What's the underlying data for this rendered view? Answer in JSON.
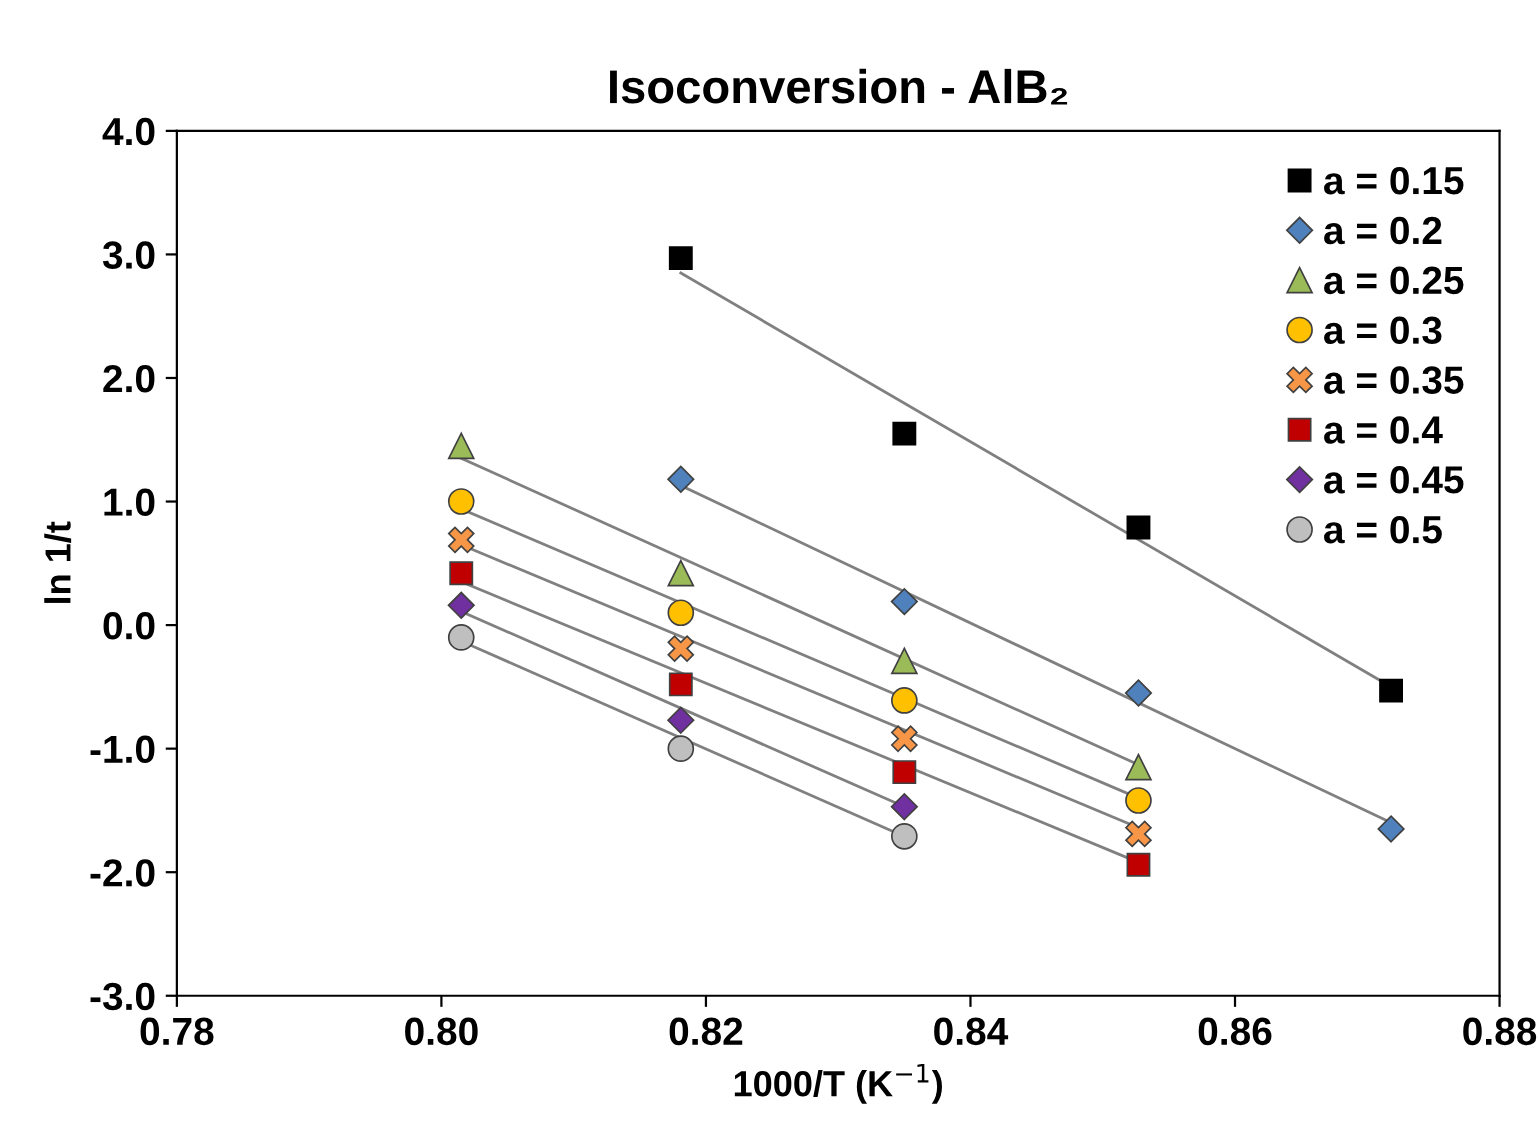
{
  "chart_data": {
    "type": "scatter",
    "title": "Isoconversion - AlB₂",
    "xlabel": "1000/T (K$^{−1}$)",
    "ylabel": "ln 1/t",
    "xlim": [
      0.78,
      0.88
    ],
    "ylim": [
      -3.0,
      4.0
    ],
    "xticks": [
      0.78,
      {
        "value": 0.8,
        "label": "0.80"
      },
      0.82,
      0.84,
      0.86,
      0.88
    ],
    "yticks": [
      {
        "value": -3,
        "label": "-3.0"
      },
      {
        "value": -2,
        "label": "-2.0"
      },
      {
        "value": -1,
        "label": "-1.0"
      },
      {
        "value": 0,
        "label": "0.0"
      },
      {
        "value": 1,
        "label": "1.0"
      },
      {
        "value": 2,
        "label": "2.0"
      },
      {
        "value": 3,
        "label": "3.0"
      },
      {
        "value": 4,
        "label": "4.0"
      }
    ],
    "grid": false,
    "legend": "top right",
    "series": [
      {
        "name": "a = 0.15",
        "color": "#000000",
        "marker": "square",
        "x": [
          0.8181,
          0.835,
          0.8527,
          0.8718
        ],
        "values": [
          2.97,
          1.55,
          0.79,
          -0.53
        ]
      },
      {
        "name": "a = 0.2",
        "color": "#4f81bd",
        "marker": "diamond",
        "x": [
          0.8181,
          0.835,
          0.8527,
          0.8718
        ],
        "values": [
          1.18,
          0.19,
          -0.55,
          -1.65
        ]
      },
      {
        "name": "a = 0.25",
        "color": "#9bbb59",
        "marker": "triangle",
        "x": [
          0.8015,
          0.8181,
          0.835,
          0.8527
        ],
        "values": [
          1.45,
          0.42,
          -0.29,
          -1.15
        ]
      },
      {
        "name": "a = 0.3",
        "color": "#ffc000",
        "marker": "circle",
        "x": [
          0.8015,
          0.8181,
          0.835,
          0.8527
        ],
        "values": [
          1.0,
          0.1,
          -0.61,
          -1.42
        ]
      },
      {
        "name": "a = 0.35",
        "color": "#f79646",
        "marker": "cross",
        "x": [
          0.8015,
          0.8181,
          0.835,
          0.8527
        ],
        "values": [
          0.69,
          -0.19,
          -0.92,
          -1.69
        ]
      },
      {
        "name": "a = 0.4",
        "color": "#c00000",
        "marker": "square",
        "x": [
          0.8015,
          0.8181,
          0.835,
          0.8527
        ],
        "values": [
          0.42,
          -0.48,
          -1.19,
          -1.94
        ]
      },
      {
        "name": "a = 0.45",
        "color": "#7030a0",
        "marker": "diamond",
        "x": [
          0.8015,
          0.8181,
          0.835
        ],
        "values": [
          0.16,
          -0.77,
          -1.47
        ]
      },
      {
        "name": "a = 0.5",
        "color": "#bfbfbf",
        "marker": "circle",
        "x": [
          0.8015,
          0.8181,
          0.835
        ],
        "values": [
          -0.1,
          -1.0,
          -1.71
        ]
      },
      {
        "type": "line",
        "color": "#808080",
        "marker": "none",
        "x": [
          0.8181,
          0.8718
        ],
        "values": [
          2.85,
          -0.5
        ]
      },
      {
        "type": "line",
        "color": "#808080",
        "marker": "none",
        "x": [
          0.8181,
          0.8718
        ],
        "values": [
          1.13,
          -1.6
        ]
      },
      {
        "type": "line",
        "color": "#808080",
        "marker": "none",
        "x": [
          0.8015,
          0.8527
        ],
        "values": [
          1.35,
          -1.13
        ]
      },
      {
        "type": "line",
        "color": "#808080",
        "marker": "none",
        "x": [
          0.8015,
          0.8527
        ],
        "values": [
          0.94,
          -1.4
        ]
      },
      {
        "type": "line",
        "color": "#808080",
        "marker": "none",
        "x": [
          0.8015,
          0.8527
        ],
        "values": [
          0.65,
          -1.64
        ]
      },
      {
        "type": "line",
        "color": "#808080",
        "marker": "none",
        "x": [
          0.8015,
          0.8527
        ],
        "values": [
          0.35,
          -1.92
        ]
      },
      {
        "type": "line",
        "color": "#808080",
        "marker": "none",
        "x": [
          0.8015,
          0.835
        ],
        "values": [
          0.11,
          -1.47
        ]
      },
      {
        "type": "line",
        "color": "#808080",
        "marker": "none",
        "x": [
          0.8015,
          0.835
        ],
        "values": [
          -0.13,
          -1.71
        ]
      }
    ]
  }
}
